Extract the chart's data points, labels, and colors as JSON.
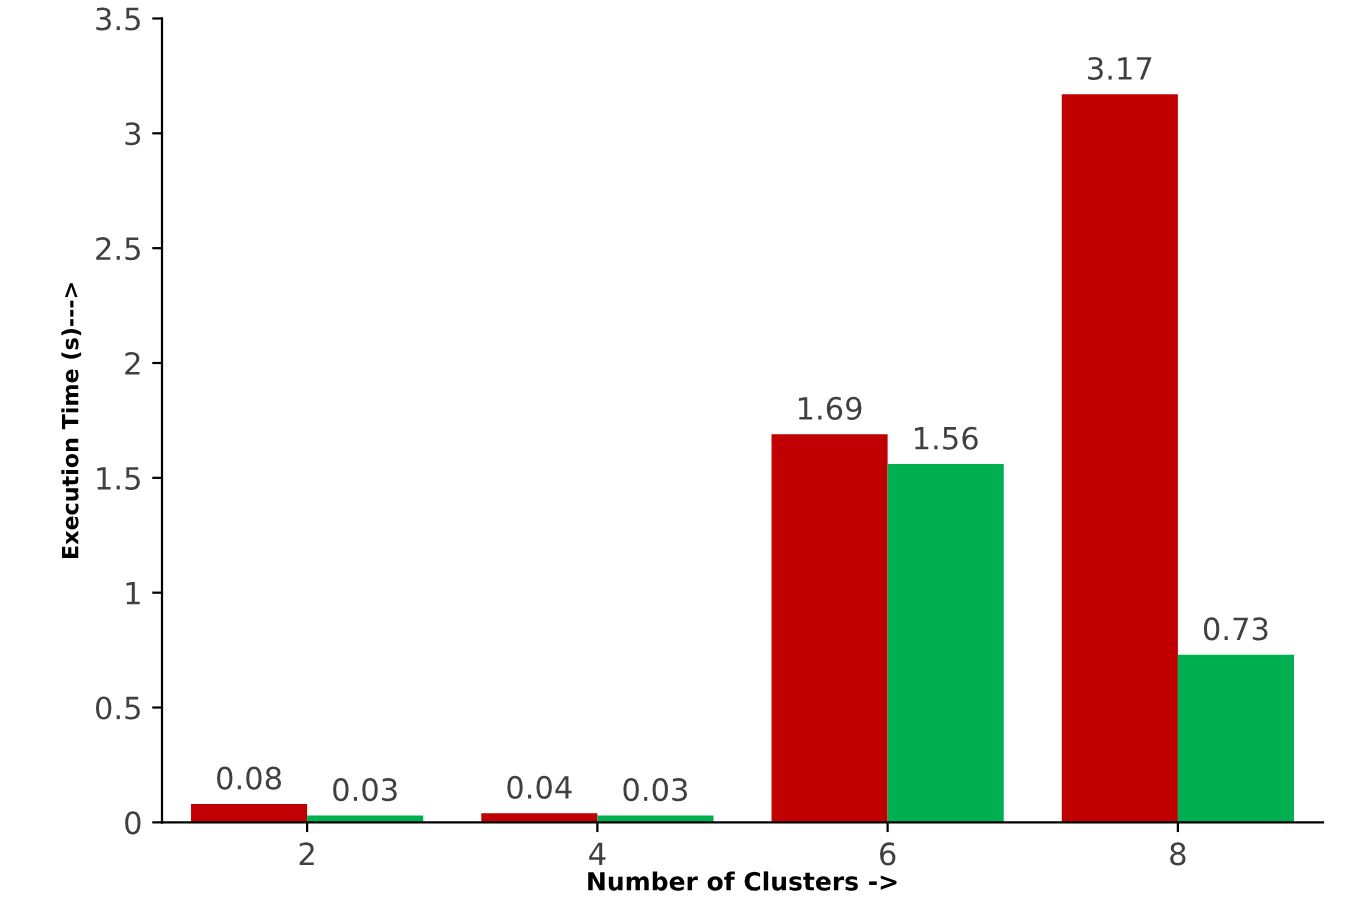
{
  "chart_data": {
    "type": "bar",
    "xlabel": "Number of Clusters ->",
    "ylabel": "Execution Time (s)--->",
    "categories": [
      "2",
      "4",
      "6",
      "8"
    ],
    "series": [
      {
        "color": "#c00000",
        "values": [
          0.08,
          0.04,
          1.69,
          3.17
        ]
      },
      {
        "color": "#00b050",
        "values": [
          0.03,
          0.03,
          1.56,
          0.73
        ]
      }
    ],
    "ylim": [
      0,
      3.5
    ],
    "yticks": [
      0,
      0.5,
      1,
      1.5,
      2,
      2.5,
      3,
      3.5
    ],
    "data_labels": true,
    "grid": false,
    "legend": false
  }
}
